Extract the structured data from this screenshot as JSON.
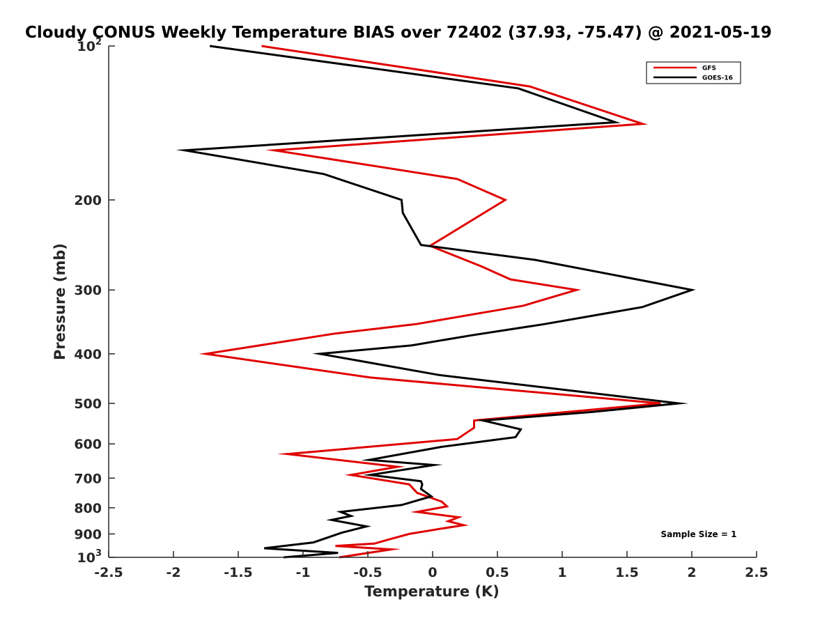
{
  "chart_data": {
    "type": "line",
    "title": "Cloudy CONUS Weekly Temperature BIAS over 72402 (37.93, -75.47) @ 2021-05-19",
    "xlabel": "Temperature (K)",
    "ylabel": "Pressure (mb)",
    "xlim": [
      -2.5,
      2.5
    ],
    "ylim": [
      100,
      1000
    ],
    "y_scale": "log",
    "y_reversed": true,
    "x_ticks": [
      -2.5,
      -2,
      -1.5,
      -1,
      -0.5,
      0,
      0.5,
      1,
      1.5,
      2,
      2.5
    ],
    "x_tick_labels": [
      "-2.5",
      "-2",
      "-1.5",
      "-1",
      "-0.5",
      "0",
      "0.5",
      "1",
      "1.5",
      "2",
      "2.5"
    ],
    "y_ticks": [
      100,
      200,
      300,
      400,
      500,
      600,
      700,
      800,
      900,
      1000
    ],
    "y_tick_labels": [
      {
        "base": "10",
        "exp": "2"
      },
      {
        "base": "200",
        "exp": ""
      },
      {
        "base": "300",
        "exp": ""
      },
      {
        "base": "400",
        "exp": ""
      },
      {
        "base": "500",
        "exp": ""
      },
      {
        "base": "600",
        "exp": ""
      },
      {
        "base": "700",
        "exp": ""
      },
      {
        "base": "800",
        "exp": ""
      },
      {
        "base": "900",
        "exp": ""
      },
      {
        "base": "10",
        "exp": "3"
      }
    ],
    "grid": false,
    "legend_position": "top-right",
    "annotation": "Sample Size = 1",
    "series": [
      {
        "name": "GFS",
        "color": "#e00000",
        "points": [
          [
            -1.32,
            100
          ],
          [
            0.75,
            120
          ],
          [
            1.62,
            142
          ],
          [
            -1.22,
            160
          ],
          [
            0.19,
            182
          ],
          [
            0.56,
            200
          ],
          [
            -0.02,
            246
          ],
          [
            0.38,
            270
          ],
          [
            0.6,
            286
          ],
          [
            1.11,
            300
          ],
          [
            0.7,
            322
          ],
          [
            -0.13,
            350
          ],
          [
            -0.75,
            365
          ],
          [
            -1.22,
            381
          ],
          [
            -1.75,
            400
          ],
          [
            -0.48,
            445
          ],
          [
            1.76,
            500
          ],
          [
            0.32,
            540
          ],
          [
            0.32,
            558
          ],
          [
            0.19,
            587
          ],
          [
            -1.12,
            628
          ],
          [
            -0.27,
            665
          ],
          [
            -0.63,
            690
          ],
          [
            -0.18,
            720
          ],
          [
            -0.12,
            748
          ],
          [
            0.07,
            778
          ],
          [
            0.11,
            795
          ],
          [
            -0.12,
            815
          ],
          [
            0.2,
            835
          ],
          [
            0.12,
            850
          ],
          [
            0.24,
            865
          ],
          [
            0.05,
            880
          ],
          [
            -0.18,
            900
          ],
          [
            -0.32,
            920
          ],
          [
            -0.45,
            940
          ],
          [
            -0.75,
            950
          ],
          [
            -0.32,
            965
          ],
          [
            -0.72,
            1000
          ]
        ]
      },
      {
        "name": "GOES-16",
        "color": "#000000",
        "points": [
          [
            -1.72,
            100
          ],
          [
            0.66,
            121
          ],
          [
            1.41,
            141
          ],
          [
            -1.91,
            160
          ],
          [
            -0.84,
            178
          ],
          [
            -0.24,
            200
          ],
          [
            -0.23,
            212
          ],
          [
            -0.09,
            245
          ],
          [
            0.79,
            262
          ],
          [
            1.48,
            283
          ],
          [
            2.0,
            300
          ],
          [
            1.62,
            324
          ],
          [
            0.86,
            350
          ],
          [
            0.3,
            368
          ],
          [
            -0.16,
            385
          ],
          [
            -0.87,
            400
          ],
          [
            0.05,
            440
          ],
          [
            1.9,
            500
          ],
          [
            1.22,
            520
          ],
          [
            0.39,
            540
          ],
          [
            0.68,
            562
          ],
          [
            0.64,
            582
          ],
          [
            0.07,
            608
          ],
          [
            -0.49,
            645
          ],
          [
            0.01,
            660
          ],
          [
            -0.48,
            690
          ],
          [
            -0.09,
            710
          ],
          [
            -0.08,
            720
          ],
          [
            -0.09,
            735
          ],
          [
            -0.01,
            760
          ],
          [
            -0.24,
            790
          ],
          [
            -0.71,
            815
          ],
          [
            -0.63,
            830
          ],
          [
            -0.78,
            845
          ],
          [
            -0.51,
            870
          ],
          [
            -0.7,
            895
          ],
          [
            -0.92,
            935
          ],
          [
            -1.3,
            960
          ],
          [
            -0.73,
            980
          ],
          [
            -1.15,
            1000
          ]
        ]
      }
    ]
  }
}
